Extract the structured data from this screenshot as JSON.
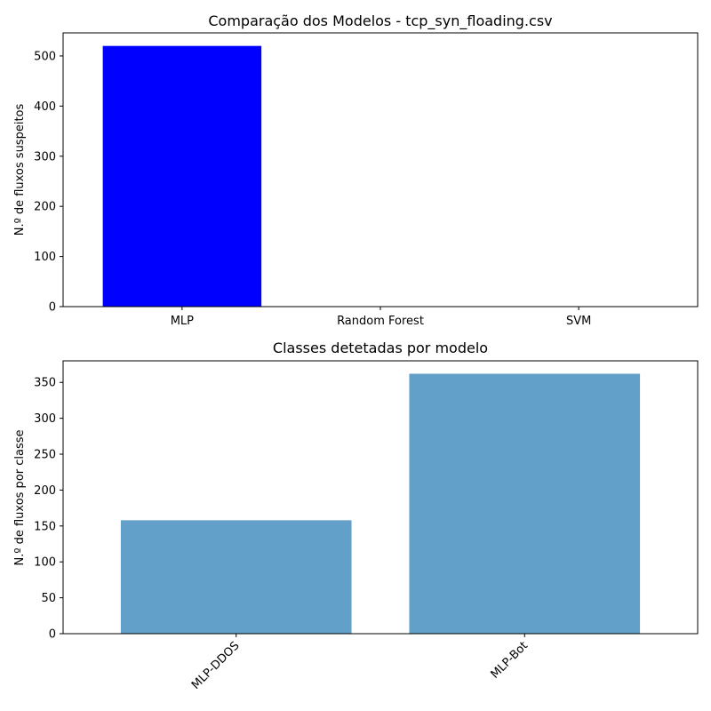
{
  "chart_data": [
    {
      "type": "bar",
      "title": "Comparação dos Modelos - tcp_syn_floading.csv",
      "xlabel": "",
      "ylabel": "N.º de fluxos suspeitos",
      "categories": [
        "MLP",
        "Random Forest",
        "SVM"
      ],
      "values": [
        520,
        0,
        0
      ],
      "colors": [
        "#0000ff",
        "#008000",
        "#ff0000"
      ],
      "ylim": [
        0,
        546
      ],
      "yticks": [
        0,
        100,
        200,
        300,
        400,
        500
      ],
      "grid": false,
      "legend": "none"
    },
    {
      "type": "bar",
      "title": "Classes detetadas por modelo",
      "xlabel": "",
      "ylabel": "N.º de fluxos por classe",
      "categories": [
        "MLP-DDOS",
        "MLP-Bot"
      ],
      "values": [
        158,
        362
      ],
      "colors": [
        "#62a0ca",
        "#62a0ca"
      ],
      "ylim": [
        0,
        380
      ],
      "yticks": [
        0,
        50,
        100,
        150,
        200,
        250,
        300,
        350
      ],
      "xtick_rotation": 45,
      "grid": false,
      "legend": "none"
    }
  ]
}
